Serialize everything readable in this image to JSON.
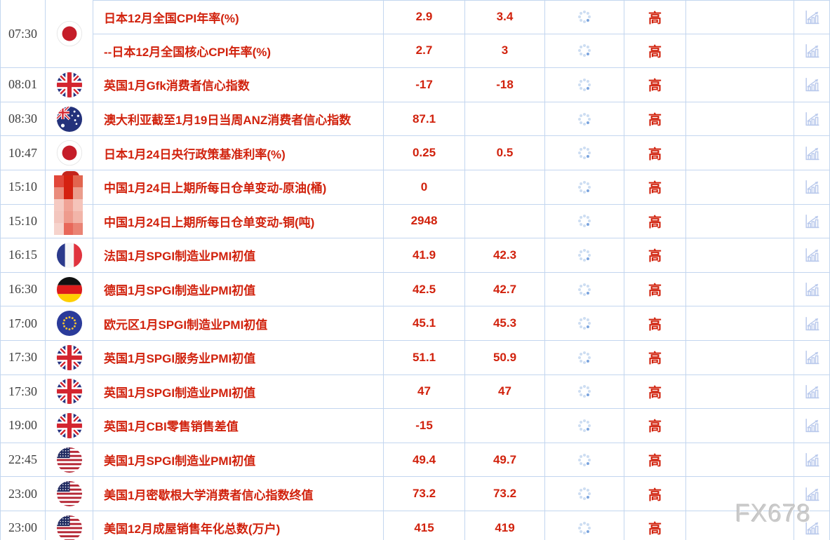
{
  "watermark": "FX678",
  "rows": [
    {
      "time": "07:30",
      "flag": "japan",
      "event": "日本12月全国CPI年率(%)",
      "previous": "2.9",
      "forecast": "3.4",
      "actual": "",
      "importance": "高",
      "time_flag_rowspan": 2
    },
    {
      "time": "07:30",
      "flag": "japan",
      "event": "--日本12月全国核心CPI年率(%)",
      "previous": "2.7",
      "forecast": "3",
      "actual": "",
      "importance": "高",
      "merged_into_above": true
    },
    {
      "time": "08:01",
      "flag": "uk",
      "event": "英国1月Gfk消费者信心指数",
      "previous": "-17",
      "forecast": "-18",
      "actual": "",
      "importance": "高"
    },
    {
      "time": "08:30",
      "flag": "australia",
      "event": "澳大利亚截至1月19日当周ANZ消费者信心指数",
      "previous": "87.1",
      "forecast": "",
      "actual": "",
      "importance": "高"
    },
    {
      "time": "10:47",
      "flag": "japan",
      "event": "日本1月24日央行政策基准利率(%)",
      "previous": "0.25",
      "forecast": "0.5",
      "actual": "",
      "importance": "高"
    },
    {
      "time": "15:10",
      "flag": "china-censored",
      "event": "中国1月24日上期所每日仓单变动-原油(桶)",
      "previous": "0",
      "forecast": "",
      "actual": "",
      "importance": "高"
    },
    {
      "time": "15:10",
      "flag": "china-censored",
      "event": "中国1月24日上期所每日仓单变动-铜(吨)",
      "previous": "2948",
      "forecast": "",
      "actual": "",
      "importance": "高"
    },
    {
      "time": "16:15",
      "flag": "france",
      "event": "法国1月SPGI制造业PMI初值",
      "previous": "41.9",
      "forecast": "42.3",
      "actual": "",
      "importance": "高"
    },
    {
      "time": "16:30",
      "flag": "germany",
      "event": "德国1月SPGI制造业PMI初值",
      "previous": "42.5",
      "forecast": "42.7",
      "actual": "",
      "importance": "高"
    },
    {
      "time": "17:00",
      "flag": "eu",
      "event": "欧元区1月SPGI制造业PMI初值",
      "previous": "45.1",
      "forecast": "45.3",
      "actual": "",
      "importance": "高"
    },
    {
      "time": "17:30",
      "flag": "uk",
      "event": "英国1月SPGI服务业PMI初值",
      "previous": "51.1",
      "forecast": "50.9",
      "actual": "",
      "importance": "高"
    },
    {
      "time": "17:30",
      "flag": "uk",
      "event": "英国1月SPGI制造业PMI初值",
      "previous": "47",
      "forecast": "47",
      "actual": "",
      "importance": "高"
    },
    {
      "time": "19:00",
      "flag": "uk",
      "event": "英国1月CBI零售销售差值",
      "previous": "-15",
      "forecast": "",
      "actual": "",
      "importance": "高"
    },
    {
      "time": "22:45",
      "flag": "us",
      "event": "美国1月SPGI制造业PMI初值",
      "previous": "49.4",
      "forecast": "49.7",
      "actual": "",
      "importance": "高"
    },
    {
      "time": "23:00",
      "flag": "us",
      "event": "美国1月密歇根大学消费者信心指数终值",
      "previous": "73.2",
      "forecast": "73.2",
      "actual": "",
      "importance": "高"
    },
    {
      "time": "23:00",
      "flag": "us",
      "event": "美国12月成屋销售年化总数(万户)",
      "previous": "415",
      "forecast": "419",
      "actual": "",
      "importance": "高"
    }
  ],
  "icons": {
    "actual_pending": "loading-spinner-icon",
    "chart_button": "bar-chart-trend-icon"
  },
  "colors": {
    "accent_red": "#d1220d",
    "grid_border": "#c3d6ef",
    "icon_blue": "#b9c9ec",
    "spinner_light": "#cdddf2",
    "spinner_dark": "#7ba4de",
    "watermark_gray": "#c6c6c6"
  },
  "censor_mosaic": {
    "blocks": [
      [
        "#e1473a",
        "#d52110",
        "#e2654f"
      ],
      [
        "#ea8c7c",
        "#d52110",
        "#eb9d8c"
      ],
      [
        "#f5cac2",
        "#f0a396",
        "#f5c4ba"
      ],
      [
        "#f3c6be",
        "#ee9b8d",
        "#f2b5a9"
      ],
      [
        "#f6d3cc",
        "#e8685a",
        "#ea8475"
      ]
    ]
  }
}
